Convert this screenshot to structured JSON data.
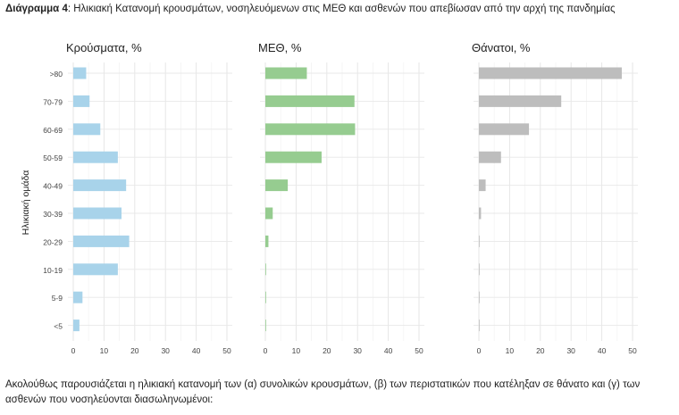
{
  "caption": {
    "label": "Διάγραμμα 4",
    "text": ": Ηλικιακή Κατανομή κρουσμάτων, νοσηλευόμενων στις ΜΕΘ και ασθενών που απεβίωσαν από την αρχή της πανδημίας"
  },
  "chart_data": {
    "type": "bar",
    "orientation": "horizontal",
    "ylabel": "Ηλικιακή ομάδα",
    "categories": [
      ">80",
      "70-79",
      "60-69",
      "50-59",
      "40-49",
      "30-39",
      "20-29",
      "10-19",
      "5-9",
      "<5"
    ],
    "xlim": [
      0,
      50
    ],
    "xticks": [
      "0",
      "10",
      "20",
      "30",
      "40",
      "50"
    ],
    "grid": true,
    "panels": [
      {
        "title": "Κρούσματα, %",
        "color": "#a8d3ea",
        "values": [
          4.2,
          5.3,
          8.8,
          14.5,
          17.2,
          15.7,
          18.2,
          14.5,
          3.0,
          2.0
        ]
      },
      {
        "title": "ΜΕΘ, %",
        "color": "#96cc90",
        "values": [
          13.5,
          29.0,
          29.2,
          18.3,
          7.3,
          2.4,
          1.0,
          0.2,
          0.1,
          0.1
        ]
      },
      {
        "title": "Θάνατοι, %",
        "color": "#bdbdbd",
        "values": [
          46.5,
          26.8,
          16.3,
          7.2,
          2.2,
          0.7,
          0.2,
          0.1,
          0.05,
          0.05
        ]
      }
    ]
  },
  "paragraph": "Ακολούθως παρουσιάζεται η ηλικιακή κατανομή των (α) συνολικών κρουσμάτων, (β) των περιστατικών που κατέληξαν σε θάνατο και (γ) των ασθενών που νοσηλεύονται διασωληνωμένοι:"
}
